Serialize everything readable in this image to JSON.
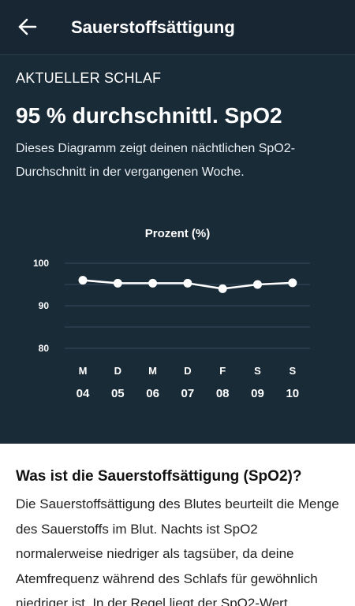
{
  "header": {
    "title": "Sauerstoffsättigung",
    "back_icon": "arrow-left-icon"
  },
  "summary": {
    "section_label": "AKTUELLER SCHLAF",
    "headline": "95 % durchschnittl. SpO2",
    "description": "Dieses Diagramm zeigt deinen nächtlichen SpO2-Durchschnitt in der vergangenen Woche."
  },
  "chart_data": {
    "type": "line",
    "title": "Prozent (%)",
    "ylim": [
      80,
      100
    ],
    "yticks": [
      80,
      90,
      100
    ],
    "grid": true,
    "categories": [
      {
        "day": "M",
        "date": "04"
      },
      {
        "day": "D",
        "date": "05"
      },
      {
        "day": "M",
        "date": "06"
      },
      {
        "day": "D",
        "date": "07"
      },
      {
        "day": "F",
        "date": "08"
      },
      {
        "day": "S",
        "date": "09"
      },
      {
        "day": "S",
        "date": "10"
      }
    ],
    "values": [
      96,
      95.3,
      95.3,
      95.3,
      94,
      95,
      95.4
    ],
    "colors": {
      "line": "#ffffff",
      "grid": "#33495a",
      "background": "#1a2b38"
    }
  },
  "info": {
    "title": "Was ist die Sauerstoffsättigung (SpO2)?",
    "body": "Die Sauerstoffsättigung des Blutes beurteilt die Menge des Sauerstoffs im Blut. Nachts ist SpO2 normalerweise niedriger als tagsüber, da deine Atemfrequenz während des Schlafs für gewöhnlich niedriger ist. In der Regel liegt der SpO2-Wert"
  }
}
